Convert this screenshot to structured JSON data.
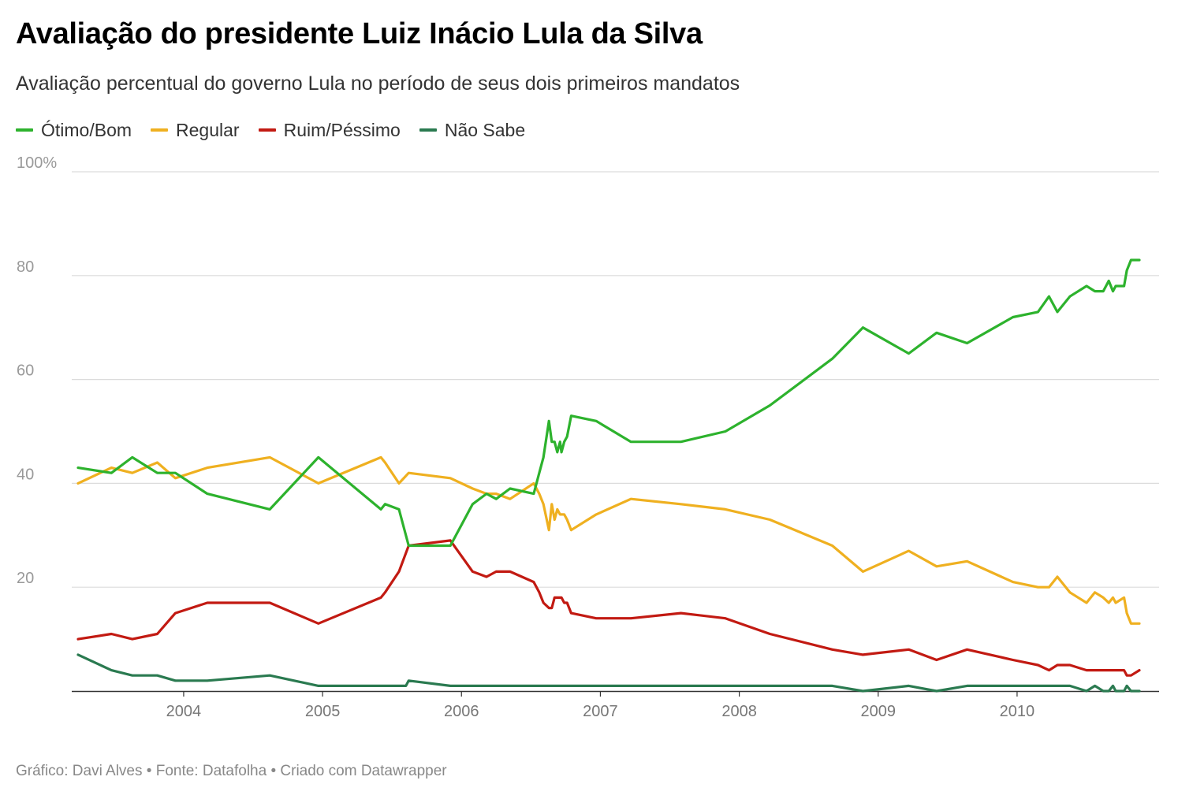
{
  "header": {
    "title": "Avaliação do presidente Luiz Inácio Lula da Silva",
    "subtitle": "Avaliação percentual do governo Lula no período de seus dois primeiros mandatos"
  },
  "footer": {
    "source": "Gráfico: Davi Alves • Fonte: Datafolha • Criado com Datawrapper"
  },
  "chart_data": {
    "type": "line",
    "title": "Avaliação do presidente Luiz Inácio Lula da Silva",
    "subtitle": "Avaliação percentual do governo Lula no período de seus dois primeiros mandatos",
    "xlabel": "",
    "ylabel": "",
    "xlim": [
      2003.2,
      2010.92
    ],
    "ylim": [
      0,
      100
    ],
    "x_ticks": [
      2004,
      2005,
      2006,
      2007,
      2008,
      2009,
      2010
    ],
    "y_ticks": [
      20,
      40,
      60,
      80,
      100
    ],
    "y_tick_labels": [
      "20",
      "40",
      "60",
      "80",
      "100%"
    ],
    "grid": "horizontal",
    "legend_position": "top-left",
    "series": [
      {
        "name": "Ótimo/Bom",
        "color": "#2db22d",
        "points": [
          [
            2003.24,
            43
          ],
          [
            2003.48,
            42
          ],
          [
            2003.63,
            45
          ],
          [
            2003.81,
            42
          ],
          [
            2003.94,
            42
          ],
          [
            2004.17,
            38
          ],
          [
            2004.62,
            35
          ],
          [
            2004.97,
            45
          ],
          [
            2005.42,
            35
          ],
          [
            2005.45,
            36
          ],
          [
            2005.55,
            35
          ],
          [
            2005.62,
            28
          ],
          [
            2005.92,
            28
          ],
          [
            2006.08,
            36
          ],
          [
            2006.18,
            38
          ],
          [
            2006.25,
            37
          ],
          [
            2006.35,
            39
          ],
          [
            2006.52,
            38
          ],
          [
            2006.56,
            42
          ],
          [
            2006.59,
            45
          ],
          [
            2006.63,
            52
          ],
          [
            2006.65,
            48
          ],
          [
            2006.67,
            48
          ],
          [
            2006.69,
            46
          ],
          [
            2006.71,
            48
          ],
          [
            2006.72,
            46
          ],
          [
            2006.74,
            48
          ],
          [
            2006.76,
            49
          ],
          [
            2006.79,
            53
          ],
          [
            2006.97,
            52
          ],
          [
            2007.22,
            48
          ],
          [
            2007.58,
            48
          ],
          [
            2007.9,
            50
          ],
          [
            2008.22,
            55
          ],
          [
            2008.67,
            64
          ],
          [
            2008.89,
            70
          ],
          [
            2009.22,
            65
          ],
          [
            2009.42,
            69
          ],
          [
            2009.64,
            67
          ],
          [
            2009.97,
            72
          ],
          [
            2010.15,
            73
          ],
          [
            2010.23,
            76
          ],
          [
            2010.29,
            73
          ],
          [
            2010.38,
            76
          ],
          [
            2010.5,
            78
          ],
          [
            2010.56,
            77
          ],
          [
            2010.62,
            77
          ],
          [
            2010.66,
            79
          ],
          [
            2010.69,
            77
          ],
          [
            2010.71,
            78
          ],
          [
            2010.77,
            78
          ],
          [
            2010.79,
            81
          ],
          [
            2010.82,
            83
          ],
          [
            2010.88,
            83
          ]
        ]
      },
      {
        "name": "Regular",
        "color": "#efb020",
        "points": [
          [
            2003.24,
            40
          ],
          [
            2003.48,
            43
          ],
          [
            2003.63,
            42
          ],
          [
            2003.81,
            44
          ],
          [
            2003.94,
            41
          ],
          [
            2004.17,
            43
          ],
          [
            2004.62,
            45
          ],
          [
            2004.97,
            40
          ],
          [
            2005.42,
            45
          ],
          [
            2005.45,
            44
          ],
          [
            2005.55,
            40
          ],
          [
            2005.62,
            42
          ],
          [
            2005.92,
            41
          ],
          [
            2006.08,
            39
          ],
          [
            2006.18,
            38
          ],
          [
            2006.25,
            38
          ],
          [
            2006.35,
            37
          ],
          [
            2006.52,
            40
          ],
          [
            2006.56,
            38
          ],
          [
            2006.59,
            36
          ],
          [
            2006.63,
            31
          ],
          [
            2006.65,
            36
          ],
          [
            2006.67,
            33
          ],
          [
            2006.69,
            35
          ],
          [
            2006.71,
            34
          ],
          [
            2006.72,
            34
          ],
          [
            2006.74,
            34
          ],
          [
            2006.76,
            33
          ],
          [
            2006.79,
            31
          ],
          [
            2006.97,
            34
          ],
          [
            2007.22,
            37
          ],
          [
            2007.58,
            36
          ],
          [
            2007.9,
            35
          ],
          [
            2008.22,
            33
          ],
          [
            2008.67,
            28
          ],
          [
            2008.89,
            23
          ],
          [
            2009.22,
            27
          ],
          [
            2009.42,
            24
          ],
          [
            2009.64,
            25
          ],
          [
            2009.97,
            21
          ],
          [
            2010.15,
            20
          ],
          [
            2010.23,
            20
          ],
          [
            2010.29,
            22
          ],
          [
            2010.38,
            19
          ],
          [
            2010.5,
            17
          ],
          [
            2010.56,
            19
          ],
          [
            2010.62,
            18
          ],
          [
            2010.66,
            17
          ],
          [
            2010.69,
            18
          ],
          [
            2010.71,
            17
          ],
          [
            2010.77,
            18
          ],
          [
            2010.79,
            15
          ],
          [
            2010.82,
            13
          ],
          [
            2010.88,
            13
          ]
        ]
      },
      {
        "name": "Ruim/Péssimo",
        "color": "#c21a12",
        "points": [
          [
            2003.24,
            10
          ],
          [
            2003.48,
            11
          ],
          [
            2003.63,
            10
          ],
          [
            2003.81,
            11
          ],
          [
            2003.94,
            15
          ],
          [
            2004.17,
            17
          ],
          [
            2004.62,
            17
          ],
          [
            2004.97,
            13
          ],
          [
            2005.42,
            18
          ],
          [
            2005.45,
            19
          ],
          [
            2005.55,
            23
          ],
          [
            2005.62,
            28
          ],
          [
            2005.92,
            29
          ],
          [
            2006.08,
            23
          ],
          [
            2006.18,
            22
          ],
          [
            2006.25,
            23
          ],
          [
            2006.35,
            23
          ],
          [
            2006.52,
            21
          ],
          [
            2006.56,
            19
          ],
          [
            2006.59,
            17
          ],
          [
            2006.63,
            16
          ],
          [
            2006.65,
            16
          ],
          [
            2006.67,
            18
          ],
          [
            2006.69,
            18
          ],
          [
            2006.71,
            18
          ],
          [
            2006.72,
            18
          ],
          [
            2006.74,
            17
          ],
          [
            2006.76,
            17
          ],
          [
            2006.79,
            15
          ],
          [
            2006.97,
            14
          ],
          [
            2007.22,
            14
          ],
          [
            2007.58,
            15
          ],
          [
            2007.9,
            14
          ],
          [
            2008.22,
            11
          ],
          [
            2008.67,
            8
          ],
          [
            2008.89,
            7
          ],
          [
            2009.22,
            8
          ],
          [
            2009.42,
            6
          ],
          [
            2009.64,
            8
          ],
          [
            2009.97,
            6
          ],
          [
            2010.15,
            5
          ],
          [
            2010.23,
            4
          ],
          [
            2010.29,
            5
          ],
          [
            2010.38,
            5
          ],
          [
            2010.5,
            4
          ],
          [
            2010.56,
            4
          ],
          [
            2010.62,
            4
          ],
          [
            2010.66,
            4
          ],
          [
            2010.69,
            4
          ],
          [
            2010.71,
            4
          ],
          [
            2010.77,
            4
          ],
          [
            2010.79,
            3
          ],
          [
            2010.82,
            3
          ],
          [
            2010.88,
            4
          ]
        ]
      },
      {
        "name": "Não Sabe",
        "color": "#2a7a50",
        "points": [
          [
            2003.24,
            7
          ],
          [
            2003.48,
            4
          ],
          [
            2003.63,
            3
          ],
          [
            2003.81,
            3
          ],
          [
            2003.94,
            2
          ],
          [
            2004.17,
            2
          ],
          [
            2004.62,
            3
          ],
          [
            2004.97,
            1
          ],
          [
            2005.42,
            1
          ],
          [
            2005.45,
            1
          ],
          [
            2005.55,
            1
          ],
          [
            2005.6,
            1
          ],
          [
            2005.62,
            2
          ],
          [
            2005.92,
            1
          ],
          [
            2006.08,
            1
          ],
          [
            2006.18,
            1
          ],
          [
            2006.25,
            1
          ],
          [
            2006.35,
            1
          ],
          [
            2006.52,
            1
          ],
          [
            2006.56,
            1
          ],
          [
            2006.59,
            1
          ],
          [
            2006.63,
            1
          ],
          [
            2006.65,
            1
          ],
          [
            2006.67,
            1
          ],
          [
            2006.69,
            1
          ],
          [
            2006.71,
            1
          ],
          [
            2006.72,
            1
          ],
          [
            2006.74,
            1
          ],
          [
            2006.76,
            1
          ],
          [
            2006.79,
            1
          ],
          [
            2006.97,
            1
          ],
          [
            2007.22,
            1
          ],
          [
            2007.58,
            1
          ],
          [
            2007.9,
            1
          ],
          [
            2008.22,
            1
          ],
          [
            2008.67,
            1
          ],
          [
            2008.89,
            0
          ],
          [
            2009.22,
            1
          ],
          [
            2009.42,
            0
          ],
          [
            2009.64,
            1
          ],
          [
            2009.97,
            1
          ],
          [
            2010.15,
            1
          ],
          [
            2010.23,
            1
          ],
          [
            2010.29,
            1
          ],
          [
            2010.38,
            1
          ],
          [
            2010.5,
            0
          ],
          [
            2010.56,
            1
          ],
          [
            2010.62,
            0
          ],
          [
            2010.66,
            0
          ],
          [
            2010.69,
            1
          ],
          [
            2010.71,
            0
          ],
          [
            2010.77,
            0
          ],
          [
            2010.79,
            1
          ],
          [
            2010.82,
            0
          ],
          [
            2010.88,
            0
          ]
        ]
      }
    ]
  }
}
